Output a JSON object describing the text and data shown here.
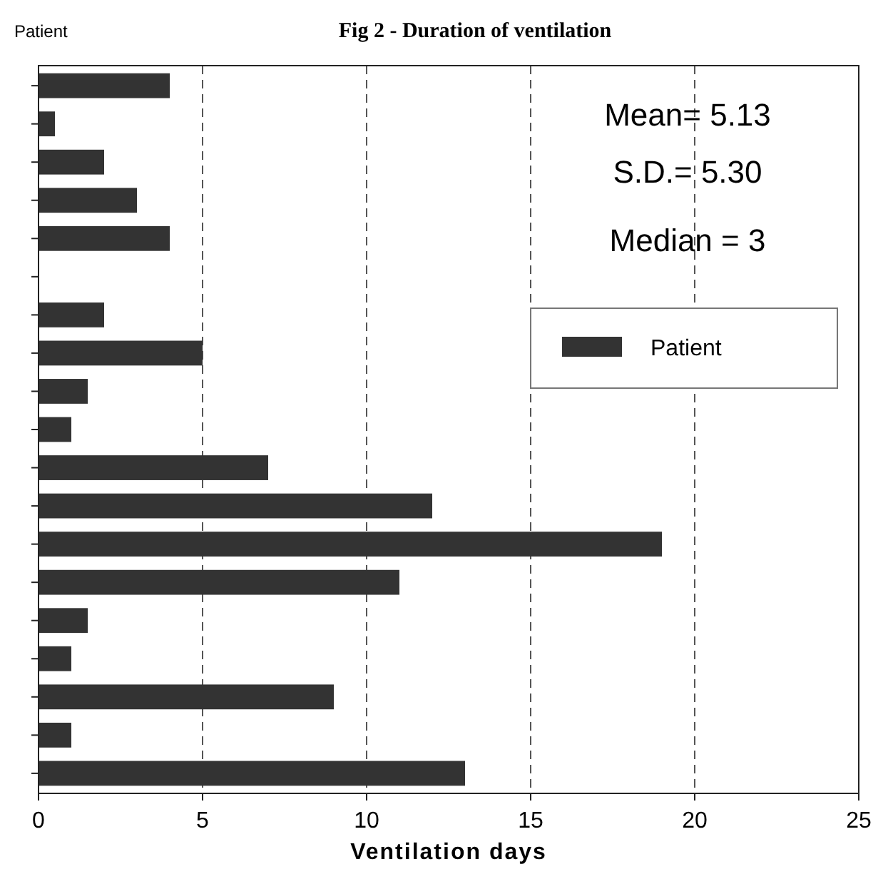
{
  "chart_data": {
    "type": "bar",
    "orientation": "horizontal",
    "title": "Fig 2 - Duration of ventilation",
    "ylabel": "Patient",
    "xlabel": "Ventilation days",
    "categories": [
      null,
      null,
      null,
      null,
      null,
      null,
      null,
      null,
      null,
      null,
      null,
      null,
      null,
      null,
      null,
      null,
      null,
      null,
      null
    ],
    "series": [
      {
        "name": "Patient",
        "color": "#333333",
        "values": [
          4,
          0.5,
          2,
          3,
          4,
          0,
          2,
          5,
          1.5,
          1,
          7,
          12,
          19,
          11,
          1.5,
          1,
          9,
          1,
          13
        ]
      }
    ],
    "xlim": [
      0,
      25
    ],
    "xticks": [
      0,
      5,
      10,
      15,
      20,
      25
    ],
    "grid": "x",
    "legend": "top right",
    "tick_labels": "x",
    "annotations": [
      "Mean= 5.13",
      "S.D.= 5.30",
      "Median = 3"
    ]
  }
}
